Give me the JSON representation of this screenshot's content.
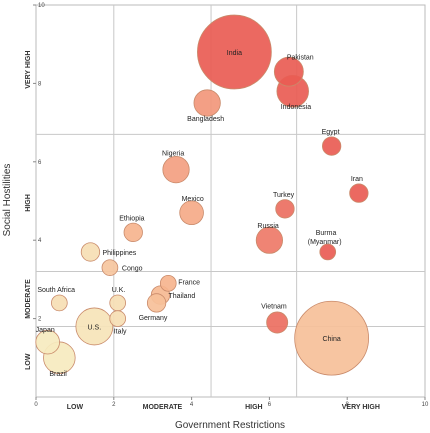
{
  "chart_data": {
    "type": "scatter",
    "subtype": "bubble",
    "xlabel": "Government Restrictions",
    "ylabel": "Social Hostilities",
    "xlim": [
      0,
      10
    ],
    "ylim": [
      0,
      10
    ],
    "x_ticks": [
      "0",
      "2",
      "4",
      "6",
      "8",
      "10"
    ],
    "y_ticks": [
      "2",
      "4",
      "6",
      "8",
      "10"
    ],
    "x_bands": [
      {
        "label": "LOW",
        "from": 0,
        "to": 2.0
      },
      {
        "label": "MODERATE",
        "from": 2.0,
        "to": 4.5
      },
      {
        "label": "HIGH",
        "from": 4.5,
        "to": 6.7
      },
      {
        "label": "VERY HIGH",
        "from": 6.7,
        "to": 10
      }
    ],
    "y_bands": [
      {
        "label": "LOW",
        "from": 0,
        "to": 1.8
      },
      {
        "label": "MODERATE",
        "from": 1.8,
        "to": 3.2
      },
      {
        "label": "HIGH",
        "from": 3.2,
        "to": 6.7
      },
      {
        "label": "VERY HIGH",
        "from": 6.7,
        "to": 10
      }
    ],
    "grid": true,
    "colors": {
      "low": "#f6f0c4",
      "mid": "#f6b48e",
      "high": "#e8524e",
      "edge": "#c98a6a"
    },
    "points": [
      {
        "label": "India",
        "x": 5.1,
        "y": 8.8,
        "size": 28,
        "level": 0.95
      },
      {
        "label": "Pakistan",
        "x": 6.5,
        "y": 8.3,
        "size": 11,
        "level": 0.95
      },
      {
        "label": "Indonesia",
        "x": 6.6,
        "y": 7.8,
        "size": 12,
        "level": 0.95
      },
      {
        "label": "Bangladesh",
        "x": 4.4,
        "y": 7.5,
        "size": 10,
        "level": 0.65
      },
      {
        "label": "Egypt",
        "x": 7.6,
        "y": 6.4,
        "size": 7,
        "level": 0.95
      },
      {
        "label": "Nigeria",
        "x": 3.6,
        "y": 5.8,
        "size": 10,
        "level": 0.6
      },
      {
        "label": "Iran",
        "x": 8.3,
        "y": 5.2,
        "size": 7,
        "level": 0.95
      },
      {
        "label": "Turkey",
        "x": 6.4,
        "y": 4.8,
        "size": 7,
        "level": 0.85
      },
      {
        "label": "Mexico",
        "x": 4.0,
        "y": 4.7,
        "size": 9,
        "level": 0.55
      },
      {
        "label": "Ethiopia",
        "x": 2.5,
        "y": 4.2,
        "size": 7,
        "level": 0.5
      },
      {
        "label": "Russia",
        "x": 6.0,
        "y": 4.0,
        "size": 10,
        "level": 0.8
      },
      {
        "label": "Burma (Myanmar)",
        "x": 7.5,
        "y": 3.7,
        "size": 6,
        "level": 0.95
      },
      {
        "label": "Philippines",
        "x": 1.4,
        "y": 3.7,
        "size": 7,
        "level": 0.15
      },
      {
        "label": "Congo",
        "x": 1.9,
        "y": 3.3,
        "size": 6,
        "level": 0.35
      },
      {
        "label": "France",
        "x": 3.4,
        "y": 2.9,
        "size": 6,
        "level": 0.5
      },
      {
        "label": "Thailand",
        "x": 3.2,
        "y": 2.6,
        "size": 7,
        "level": 0.45
      },
      {
        "label": "South Africa",
        "x": 0.6,
        "y": 2.4,
        "size": 6,
        "level": 0.15
      },
      {
        "label": "U.K.",
        "x": 2.1,
        "y": 2.4,
        "size": 6,
        "level": 0.15
      },
      {
        "label": "Germany",
        "x": 3.1,
        "y": 2.4,
        "size": 7,
        "level": 0.4
      },
      {
        "label": "Italy",
        "x": 2.1,
        "y": 2.0,
        "size": 6,
        "level": 0.15
      },
      {
        "label": "Vietnam",
        "x": 6.2,
        "y": 1.9,
        "size": 8,
        "level": 0.85
      },
      {
        "label": "U.S.",
        "x": 1.5,
        "y": 1.8,
        "size": 14,
        "level": 0.1
      },
      {
        "label": "China",
        "x": 7.6,
        "y": 1.5,
        "size": 28,
        "level": 0.4
      },
      {
        "label": "Japan",
        "x": 0.3,
        "y": 1.4,
        "size": 9,
        "level": 0.05
      },
      {
        "label": "Brazil",
        "x": 0.6,
        "y": 1.0,
        "size": 12,
        "level": 0.05
      }
    ]
  }
}
